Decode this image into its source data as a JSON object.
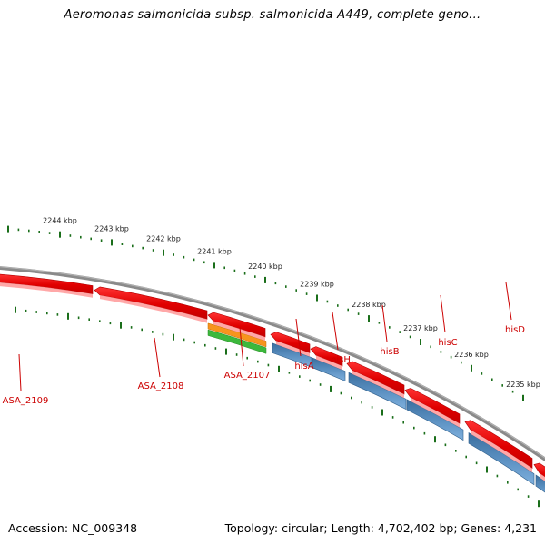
{
  "title": "Aeromonas salmonicida subsp. salmonicida A449, complete geno...",
  "footer": {
    "accession": "Accession: NC_009348",
    "summary": "Topology: circular; Length: 4,702,402 bp; Genes: 4,231"
  },
  "ruler": {
    "labels": [
      "2244 kbp",
      "2243 kbp",
      "2242 kbp",
      "2241 kbp",
      "2240 kbp",
      "2239 kbp",
      "2238 kbp",
      "2237 kbp",
      "2236 kbp",
      "2235 kbp"
    ]
  },
  "genes": [
    {
      "name": "ASA_2109",
      "strand": "reverse",
      "type": "CDS"
    },
    {
      "name": "ASA_2108",
      "strand": "reverse",
      "type": "CDS"
    },
    {
      "name": "ASA_2107",
      "strand": "reverse",
      "type": "CDS"
    },
    {
      "name": "hisA",
      "strand": "reverse",
      "type": "CDS"
    },
    {
      "name": "hisH",
      "strand": "reverse",
      "type": "CDS"
    },
    {
      "name": "hisB",
      "strand": "reverse",
      "type": "CDS"
    },
    {
      "name": "hisC",
      "strand": "reverse",
      "type": "CDS"
    },
    {
      "name": "hisD",
      "strand": "reverse",
      "type": "CDS"
    }
  ],
  "colors": {
    "gene": "#e60000",
    "gene_highlight": "#ff4d4d",
    "gene_shade": "#ff9999",
    "feature_blue": "#4f86b8",
    "feature_orange": "#f7941d",
    "feature_green": "#3cb83c",
    "backbone": "#8a8a8a",
    "ticks": "#1a6e1a",
    "label": "#cc0000"
  }
}
